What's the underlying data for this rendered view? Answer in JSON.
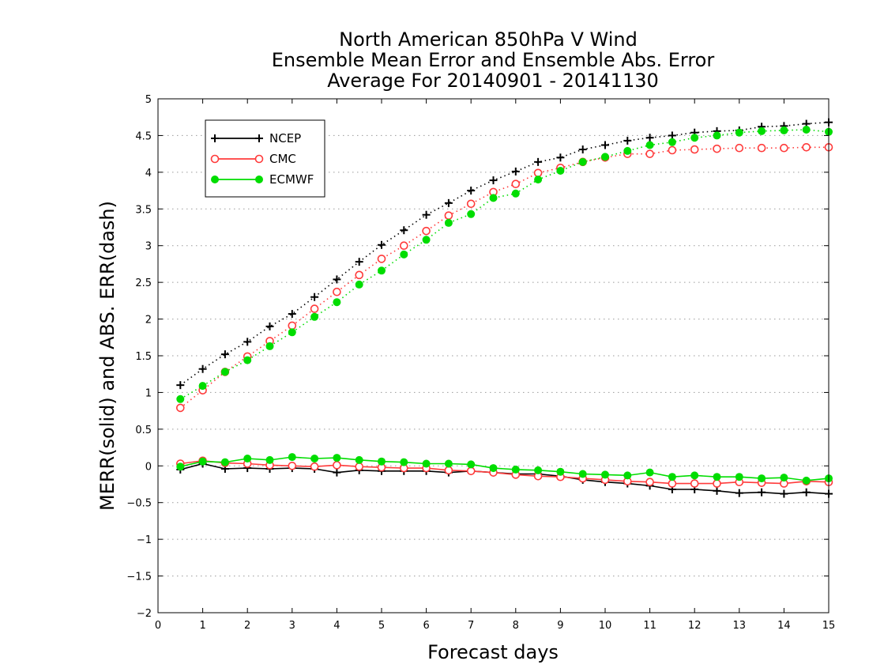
{
  "chart_data": {
    "type": "line",
    "title_lines": [
      "North American 850hPa V Wind",
      "Ensemble Mean Error and Ensemble Abs. Error",
      "Average For 20140901 - 20141130"
    ],
    "xlabel": "Forecast days",
    "ylabel": "MERR(solid) and ABS. ERR(dash)",
    "xlim": [
      0,
      15
    ],
    "ylim": [
      -2,
      5
    ],
    "x_ticks": [
      0,
      1,
      2,
      3,
      4,
      5,
      6,
      7,
      8,
      9,
      10,
      11,
      12,
      13,
      14,
      15
    ],
    "y_ticks": [
      -2,
      -1.5,
      -1,
      -0.5,
      0,
      0.5,
      1,
      1.5,
      2,
      2.5,
      3,
      3.5,
      4,
      4.5,
      5
    ],
    "grid": "horizontal-dotted",
    "legend_position": "top-left",
    "x": [
      0.5,
      1,
      1.5,
      2,
      2.5,
      3,
      3.5,
      4,
      4.5,
      5,
      5.5,
      6,
      6.5,
      7,
      7.5,
      8,
      8.5,
      9,
      9.5,
      10,
      10.5,
      11,
      11.5,
      12,
      12.5,
      13,
      13.5,
      14,
      14.5,
      15
    ],
    "series": [
      {
        "name": "NCEP",
        "color": "#000000",
        "marker": "plus",
        "abs_error": [
          1.1,
          1.32,
          1.52,
          1.69,
          1.9,
          2.07,
          2.3,
          2.54,
          2.78,
          3.01,
          3.21,
          3.42,
          3.58,
          3.75,
          3.89,
          4.01,
          4.14,
          4.2,
          4.31,
          4.37,
          4.43,
          4.47,
          4.5,
          4.54,
          4.56,
          4.57,
          4.62,
          4.63,
          4.66,
          4.68
        ],
        "mean_error": [
          -0.05,
          0.03,
          -0.04,
          -0.03,
          -0.04,
          -0.03,
          -0.04,
          -0.09,
          -0.06,
          -0.07,
          -0.07,
          -0.07,
          -0.09,
          -0.07,
          -0.09,
          -0.11,
          -0.11,
          -0.14,
          -0.19,
          -0.22,
          -0.24,
          -0.27,
          -0.32,
          -0.32,
          -0.34,
          -0.37,
          -0.36,
          -0.38,
          -0.36,
          -0.38
        ]
      },
      {
        "name": "CMC",
        "color": "#ff3b3b",
        "marker": "open-circle",
        "abs_error": [
          0.79,
          1.03,
          1.28,
          1.49,
          1.7,
          1.91,
          2.14,
          2.37,
          2.6,
          2.82,
          3.0,
          3.2,
          3.41,
          3.57,
          3.73,
          3.84,
          3.99,
          4.06,
          4.14,
          4.2,
          4.25,
          4.25,
          4.3,
          4.31,
          4.32,
          4.33,
          4.33,
          4.33,
          4.34,
          4.34
        ],
        "mean_error": [
          0.03,
          0.07,
          0.04,
          0.03,
          0.01,
          0.0,
          -0.01,
          0.01,
          -0.01,
          -0.02,
          -0.03,
          -0.03,
          -0.06,
          -0.07,
          -0.09,
          -0.12,
          -0.14,
          -0.15,
          -0.17,
          -0.19,
          -0.21,
          -0.22,
          -0.24,
          -0.24,
          -0.24,
          -0.22,
          -0.23,
          -0.24,
          -0.21,
          -0.22
        ]
      },
      {
        "name": "ECMWF",
        "color": "#00dd00",
        "marker": "filled-circle",
        "abs_error": [
          0.91,
          1.09,
          1.28,
          1.44,
          1.63,
          1.82,
          2.03,
          2.23,
          2.47,
          2.66,
          2.88,
          3.08,
          3.31,
          3.43,
          3.65,
          3.71,
          3.9,
          4.02,
          4.14,
          4.21,
          4.29,
          4.37,
          4.41,
          4.47,
          4.5,
          4.54,
          4.56,
          4.57,
          4.58,
          4.55
        ],
        "mean_error": [
          -0.01,
          0.06,
          0.05,
          0.1,
          0.08,
          0.12,
          0.1,
          0.11,
          0.08,
          0.06,
          0.05,
          0.03,
          0.03,
          0.02,
          -0.03,
          -0.05,
          -0.06,
          -0.08,
          -0.11,
          -0.12,
          -0.13,
          -0.09,
          -0.15,
          -0.13,
          -0.15,
          -0.15,
          -0.17,
          -0.16,
          -0.2,
          -0.17
        ]
      }
    ]
  }
}
